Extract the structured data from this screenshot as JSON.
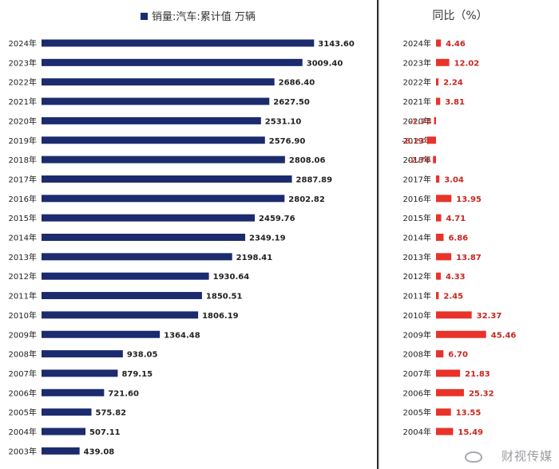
{
  "colors": {
    "volume_bar": "#1c2b6e",
    "yoy_bar": "#e8332a",
    "yoy_label": "#c8261f",
    "text": "#222222"
  },
  "watermark": {
    "text": "财视传媒",
    "icon": "weibo-logo-icon"
  },
  "chart_data": [
    {
      "type": "bar",
      "orientation": "horizontal",
      "legend": "销量:汽车:累计值 万辆",
      "legend_position": "top",
      "categories": [
        "2024年",
        "2023年",
        "2022年",
        "2021年",
        "2020年",
        "2019年",
        "2018年",
        "2017年",
        "2016年",
        "2015年",
        "2014年",
        "2013年",
        "2012年",
        "2011年",
        "2010年",
        "2009年",
        "2008年",
        "2007年",
        "2006年",
        "2005年",
        "2004年",
        "2003年"
      ],
      "values": [
        3143.6,
        3009.4,
        2686.4,
        2627.5,
        2531.1,
        2576.9,
        2808.06,
        2887.89,
        2802.82,
        2459.76,
        2349.19,
        2198.41,
        1930.64,
        1850.51,
        1806.19,
        1364.48,
        938.05,
        879.15,
        721.6,
        575.82,
        507.11,
        439.08
      ],
      "labels": [
        "3143.60",
        "3009.40",
        "2686.40",
        "2627.50",
        "2531.10",
        "2576.90",
        "2808.06",
        "2887.89",
        "2802.82",
        "2459.76",
        "2349.19",
        "2198.41",
        "1930.64",
        "1850.51",
        "1806.19",
        "1364.48",
        "938.05",
        "879.15",
        "721.60",
        "575.82",
        "507.11",
        "439.08"
      ],
      "xlim": [
        0,
        3500
      ],
      "grid": false
    },
    {
      "type": "bar",
      "orientation": "horizontal",
      "title": "同比（%）",
      "categories": [
        "2024年",
        "2023年",
        "2022年",
        "2021年",
        "2020年",
        "2019年",
        "2018年",
        "2017年",
        "2016年",
        "2015年",
        "2014年",
        "2013年",
        "2012年",
        "2011年",
        "2010年",
        "2009年",
        "2008年",
        "2007年",
        "2006年",
        "2005年",
        "2004年"
      ],
      "values": [
        4.46,
        12.02,
        2.24,
        3.81,
        -1.78,
        -8.23,
        -2.76,
        3.04,
        13.95,
        4.71,
        6.86,
        13.87,
        4.33,
        2.45,
        32.37,
        45.46,
        6.7,
        21.83,
        25.32,
        13.55,
        15.49
      ],
      "labels": [
        "4.46",
        "12.02",
        "2.24",
        "3.81",
        "-1.78",
        "-8.23",
        "-2.76",
        "3.04",
        "13.95",
        "4.71",
        "6.86",
        "13.87",
        "4.33",
        "2.45",
        "32.37",
        "45.46",
        "6.70",
        "21.83",
        "25.32",
        "13.55",
        "15.49"
      ],
      "grid": false
    }
  ]
}
